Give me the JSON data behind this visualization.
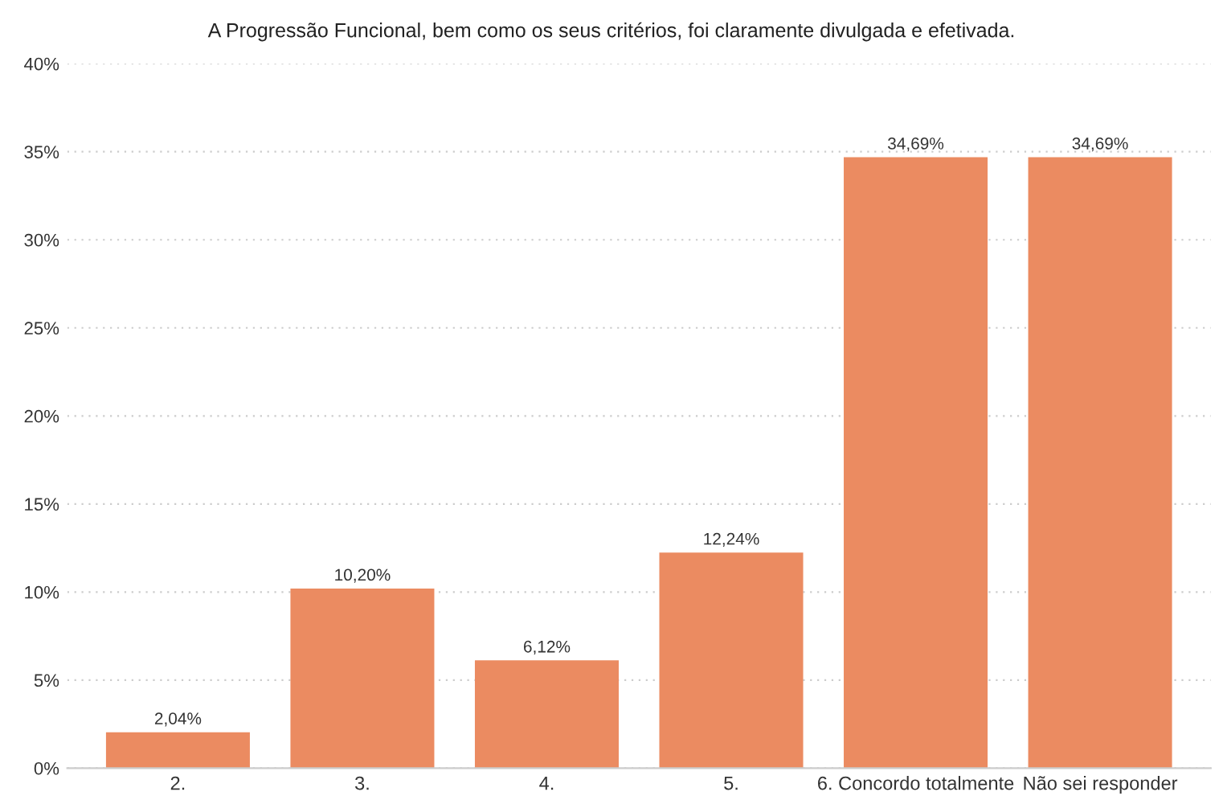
{
  "chart_data": {
    "type": "bar",
    "title": "A Progressão Funcional, bem como os seus critérios, foi claramente divulgada e efetivada.",
    "categories": [
      "2.",
      "3.",
      "4.",
      "5.",
      "6. Concordo totalmente",
      "Não sei responder"
    ],
    "values": [
      2.04,
      10.2,
      6.12,
      12.24,
      34.69,
      34.69
    ],
    "value_labels": [
      "2,04%",
      "10,20%",
      "6,12%",
      "12,24%",
      "34,69%",
      "34,69%"
    ],
    "color": "#eb8b61",
    "ylim": [
      0,
      40
    ],
    "yticks": [
      {
        "value": 0,
        "label": "0%"
      },
      {
        "value": 5,
        "label": "5%"
      },
      {
        "value": 10,
        "label": "10%"
      },
      {
        "value": 15,
        "label": "15%"
      },
      {
        "value": 20,
        "label": "20%"
      },
      {
        "value": 25,
        "label": "25%"
      },
      {
        "value": 30,
        "label": "30%"
      },
      {
        "value": 35,
        "label": "35%"
      },
      {
        "value": 40,
        "label": "40%"
      }
    ],
    "grid": "y"
  }
}
